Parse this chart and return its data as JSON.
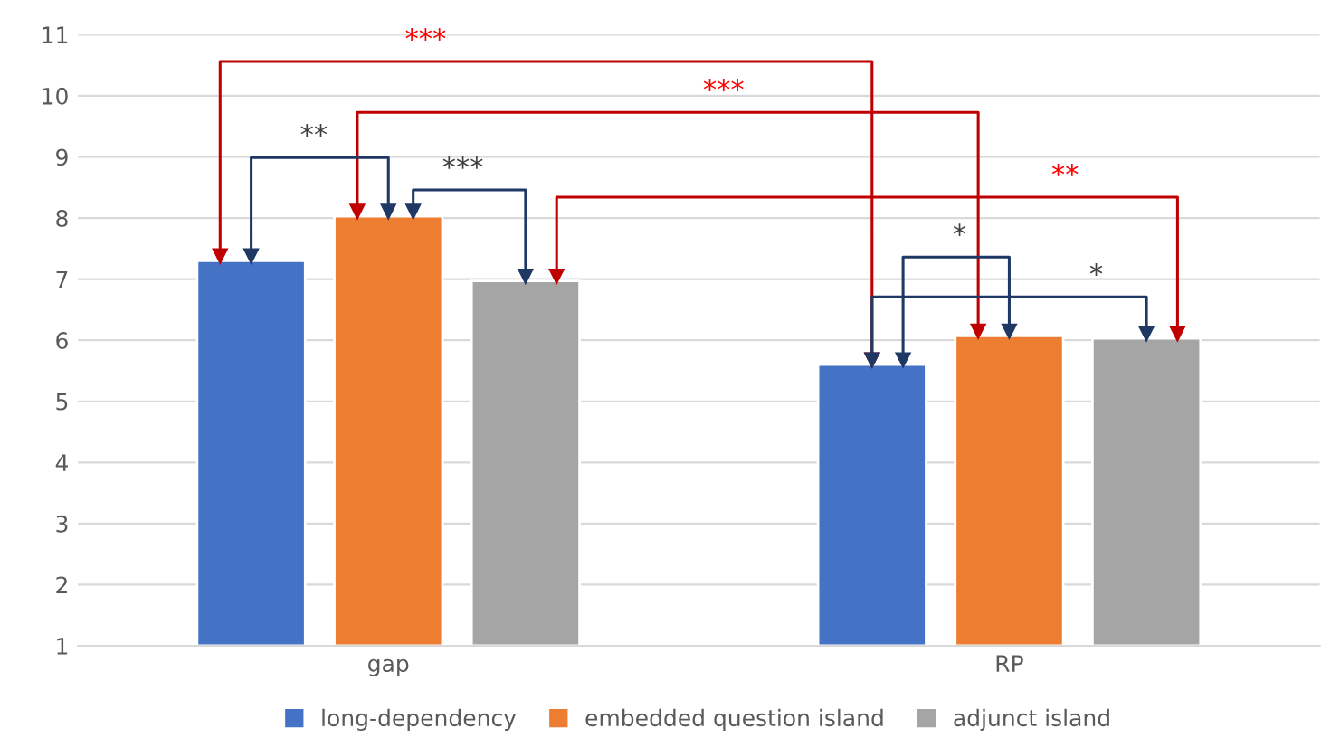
{
  "chart_data": {
    "type": "bar",
    "categories": [
      "gap",
      "RP"
    ],
    "series": [
      {
        "name": "long-dependency",
        "color": "#4472c4",
        "values": [
          7.3,
          5.6
        ]
      },
      {
        "name": "embedded question island",
        "color": "#ed7d31",
        "values": [
          8.03,
          6.07
        ]
      },
      {
        "name": "adjunct island",
        "color": "#a5a5a5",
        "values": [
          6.97,
          6.03
        ]
      }
    ],
    "ylim": [
      1,
      11
    ],
    "yticks": [
      1,
      2,
      3,
      4,
      5,
      6,
      7,
      8,
      9,
      10,
      11
    ],
    "grid": "y",
    "legend": "bottom",
    "annotations": [
      "***",
      "***",
      "**",
      "***",
      "**",
      "*",
      "*"
    ]
  }
}
